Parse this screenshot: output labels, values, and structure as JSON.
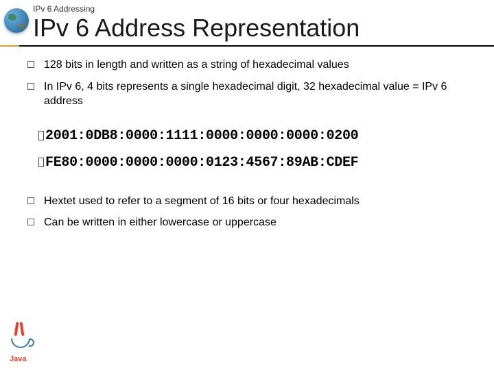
{
  "breadcrumb": "IPv 6 Addressing",
  "title": "IPv 6 Address Representation",
  "bullets_top": [
    "128 bits in length and written as a string of hexadecimal values",
    "In IPv 6, 4 bits represents a single hexadecimal digit, 32 hexadecimal value = IPv 6 address"
  ],
  "code_lines": [
    "2001:0DB8:0000:1111:0000:0000:0000:0200",
    "FE80:0000:0000:0000:0123:4567:89AB:CDEF"
  ],
  "bullets_bottom": [
    "Hextet used to refer to a segment of 16 bits or four hexadecimals",
    "Can be written in either lowercase or uppercase"
  ],
  "java_label": "Java",
  "style": {
    "title_fontsize": 36,
    "body_fontsize": 16,
    "code_fontsize": 20,
    "title_color": "#1a1a1a",
    "text_color": "#000000",
    "underline_color": "#000000",
    "accent_color": "#d8a030",
    "bullet_border": "#555555",
    "java_blue": "#3a76b0",
    "java_red": "#e8402a",
    "background_color": "#ffffff"
  }
}
